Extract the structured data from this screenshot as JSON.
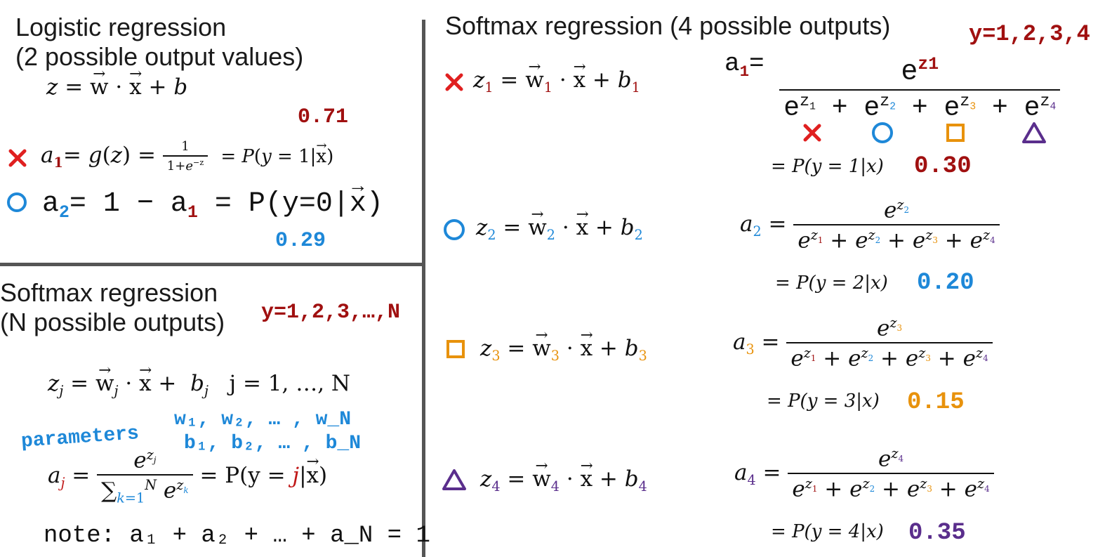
{
  "left_top": {
    "title_line1": "Logistic regression",
    "title_line2": "(2 possible output values)",
    "z_eq": "z = w · x + b",
    "a1_eq": "a₁ = g(z) = 1/(1+e^−z) = P(y = 1|x)",
    "a1_prob": "0.71",
    "a2_eq": "a₂ = 1 − a₁ = P(y=0|x)",
    "a2_prob": "0.29"
  },
  "left_bottom": {
    "title_line1": "Softmax regression",
    "title_line2": "(N possible outputs)",
    "y_range": "y=1,2,3,…,N",
    "z_eq_range": "j = 1, …, N",
    "params_label": "parameters",
    "params_w": "w₁, w₂, … , w_N",
    "params_b": "b₁, b₂, … , b_N",
    "note": "note:  a₁ + a₂ + … + a_N = 1"
  },
  "right": {
    "title": "Softmax regression (4 possible outputs)",
    "y_range": "y=1,2,3,4",
    "rows": [
      {
        "idx": "1",
        "prob_text": "P(y = 1|x)",
        "prob": "0.30"
      },
      {
        "idx": "2",
        "prob_text": "P(y = 2|x)",
        "prob": "0.20"
      },
      {
        "idx": "3",
        "prob_text": "P(y = 3|x)",
        "prob": "0.15"
      },
      {
        "idx": "4",
        "prob_text": "P(y = 4|x)",
        "prob": "0.35"
      }
    ]
  },
  "colors": {
    "red": "#c01818",
    "blue": "#1e88d8",
    "orange": "#e8920c",
    "purple": "#5a2e8c"
  },
  "icons": [
    "cross-icon",
    "circle-icon",
    "square-icon",
    "triangle-icon"
  ]
}
